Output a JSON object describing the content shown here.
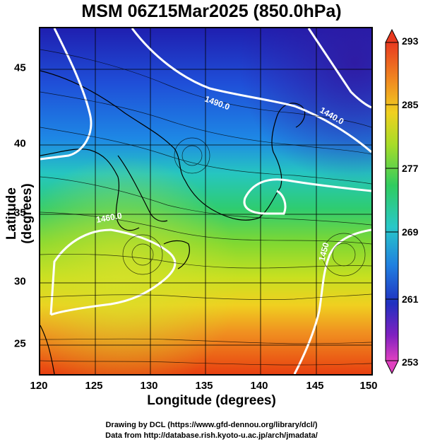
{
  "title": "MSM 06Z15Mar2025 (850.0hPa)",
  "x_axis": {
    "label": "Longitude (degrees)",
    "ticks": [
      "120",
      "125",
      "130",
      "135",
      "140",
      "145",
      "150"
    ],
    "range": [
      120,
      150
    ]
  },
  "y_axis": {
    "label": "Latitude  (degrees)",
    "ticks": [
      "25",
      "30",
      "35",
      "40",
      "45"
    ],
    "range": [
      22.4,
      47.6
    ]
  },
  "colorbar": {
    "ticks": [
      "293",
      "285",
      "277",
      "269",
      "261",
      "253"
    ],
    "range": [
      253,
      293
    ]
  },
  "contours": [
    "1490.0",
    "1440.0",
    "1450",
    "1460.0"
  ],
  "credits": [
    "Drawing by DCL (https://www.gfd-dennou.org/library/dcl/)",
    "Data from http://database.rish.kyoto-u.ac.jp/arch/jmadata/"
  ],
  "colors": {
    "cold": "#1a2fbf",
    "mid": "#2ec88a",
    "warm": "#e8501a",
    "contour": "#ffffff"
  }
}
